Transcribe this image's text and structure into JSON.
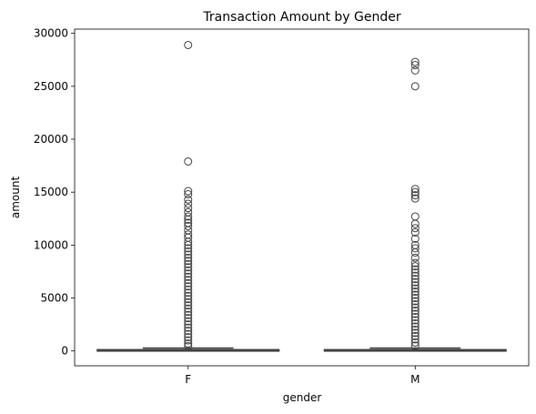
{
  "chart_data": {
    "type": "box",
    "title": "Transaction Amount by Gender",
    "xlabel": "gender",
    "ylabel": "amount",
    "categories": [
      "F",
      "M"
    ],
    "ylim": [
      -1400,
      30400
    ],
    "yticks": [
      0,
      5000,
      10000,
      15000,
      20000,
      25000,
      30000
    ],
    "grid": false,
    "box_color": "#1f77b4",
    "boxes": [
      {
        "category": "F",
        "min": 0,
        "q1": 15,
        "median": 40,
        "q3": 120,
        "max": 280,
        "outliers": [
          28900,
          17900,
          15100,
          14800,
          14300,
          13900,
          13500,
          13100,
          12700,
          12400,
          12100,
          11800,
          11400,
          11000,
          10700,
          10300,
          10000,
          9700,
          9400,
          9100,
          8800,
          8500,
          8200,
          7900,
          7600,
          7300,
          7000,
          6700,
          6400,
          6100,
          5800,
          5500,
          5200,
          4900,
          4600,
          4300,
          4000,
          3700,
          3400,
          3100,
          2800,
          2500,
          2200,
          1900,
          1600,
          1300,
          1000,
          700,
          450
        ]
      },
      {
        "category": "M",
        "min": 0,
        "q1": 15,
        "median": 40,
        "q3": 120,
        "max": 280,
        "outliers": [
          27300,
          27000,
          26500,
          25000,
          15300,
          15000,
          14700,
          14400,
          12700,
          12000,
          11600,
          11200,
          10600,
          10000,
          9700,
          9300,
          8800,
          8300,
          8000,
          7700,
          7400,
          7100,
          6800,
          6500,
          6200,
          5900,
          5600,
          5300,
          5000,
          4700,
          4400,
          4100,
          3800,
          3500,
          3200,
          2900,
          2600,
          2300,
          2000,
          1700,
          1400,
          1100,
          800,
          500
        ]
      }
    ]
  }
}
